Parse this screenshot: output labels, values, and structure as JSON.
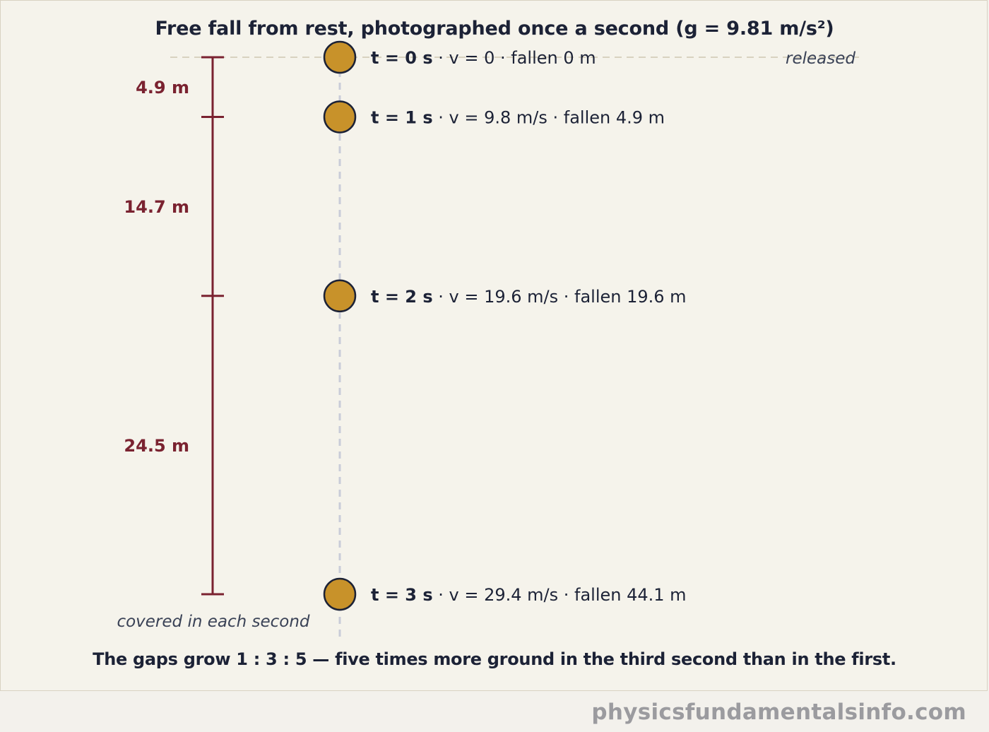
{
  "title": "Free fall from rest, photographed once a second (g = 9.81 m/s²)",
  "release_label": "released",
  "interval_caption": "covered in each second",
  "caption": "The gaps grow 1 : 3 : 5 — five times more ground in the third second than in the first.",
  "watermark": "physicsfundamentalsinfo.com",
  "colors": {
    "ball": "#c8922a",
    "ball_outline": "#1c2236",
    "interval_bar": "#7a2230",
    "dashed_path": "#c9ccd8",
    "release_line": "#d8d2c0"
  },
  "diagram_data": {
    "type": "free_fall_strobe",
    "g_m_s2": 9.81,
    "snapshots": [
      {
        "t_label": "t = 0 s",
        "detail": " · v = 0 · fallen 0 m",
        "t_s": 0,
        "v_m_s": 0,
        "fallen_m": 0
      },
      {
        "t_label": "t = 1 s",
        "detail": " · v = 9.8 m/s · fallen 4.9 m",
        "t_s": 1,
        "v_m_s": 9.8,
        "fallen_m": 4.9
      },
      {
        "t_label": "t = 2 s",
        "detail": " · v = 19.6 m/s · fallen 19.6 m",
        "t_s": 2,
        "v_m_s": 19.6,
        "fallen_m": 19.6
      },
      {
        "t_label": "t = 3 s",
        "detail": " · v = 29.4 m/s · fallen 44.1 m",
        "t_s": 3,
        "v_m_s": 29.4,
        "fallen_m": 44.1
      }
    ],
    "intervals": [
      {
        "label": "4.9 m",
        "distance_m": 4.9
      },
      {
        "label": "14.7 m",
        "distance_m": 14.7
      },
      {
        "label": "24.5 m",
        "distance_m": 24.5
      }
    ]
  }
}
